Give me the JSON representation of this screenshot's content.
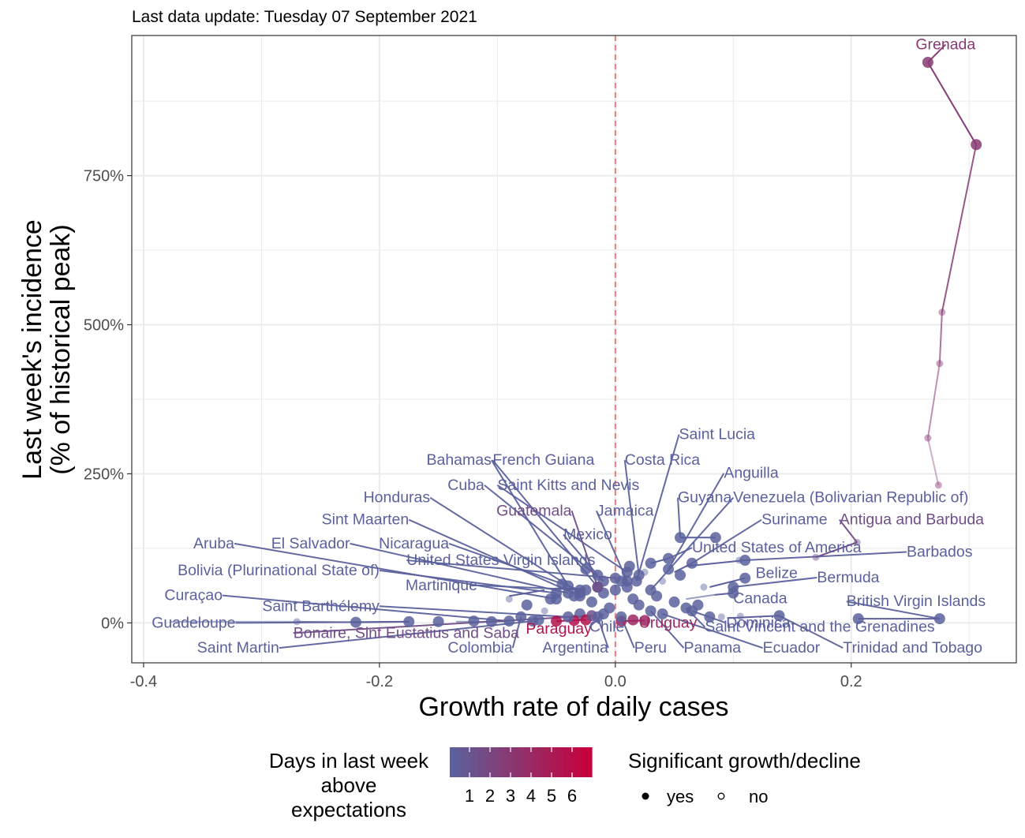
{
  "chart_data": {
    "type": "scatter",
    "subtitle": "Last data update: Tuesday 07 September 2021",
    "xlabel": "Growth rate of daily cases",
    "ylabel_lines": [
      "Last week's incidence",
      "(% of historical peak)"
    ],
    "xlim": [
      -0.41,
      0.34
    ],
    "ylim": [
      -67,
      985
    ],
    "x_ticks": [
      {
        "value": -0.4,
        "label": "-0.4"
      },
      {
        "value": -0.2,
        "label": "-0.2"
      },
      {
        "value": 0.0,
        "label": "0.0"
      },
      {
        "value": 0.2,
        "label": "0.2"
      }
    ],
    "y_ticks": [
      {
        "value": 0,
        "label": "0%"
      },
      {
        "value": 250,
        "label": "250%"
      },
      {
        "value": 500,
        "label": "500%"
      },
      {
        "value": 750,
        "label": "750%"
      }
    ],
    "grid": true,
    "reference_line_x": 0,
    "trajectories": [
      {
        "name": "Grenada",
        "days": 3,
        "points": [
          [
            0.274,
            231
          ],
          [
            0.265,
            310
          ],
          [
            0.275,
            435
          ],
          [
            0.277,
            521
          ],
          [
            0.306,
            802
          ],
          [
            0.265,
            940
          ]
        ]
      },
      {
        "name": "Antigua and Barbuda",
        "days": 2,
        "points": [
          [
            0.17,
            110
          ],
          [
            0.205,
            135
          ]
        ]
      },
      {
        "name": "British Virgin Islands",
        "days": 1,
        "points": [
          [
            0.206,
            7
          ],
          [
            0.275,
            7
          ]
        ]
      },
      {
        "name": "Trinidad and Tobago",
        "days": 1,
        "points": [
          [
            0.095,
            8
          ],
          [
            0.139,
            12
          ]
        ]
      },
      {
        "name": "Guyana",
        "days": 1,
        "points": [
          [
            0.055,
            143
          ],
          [
            0.085,
            143
          ]
        ]
      },
      {
        "name": "Suriname",
        "days": 1,
        "points": [
          [
            0.05,
            85
          ],
          [
            0.065,
            100
          ]
        ]
      },
      {
        "name": "Guadeloupe",
        "days": 1,
        "points": [
          [
            -0.378,
            2
          ],
          [
            -0.27,
            2
          ],
          [
            -0.22,
            1
          ],
          [
            -0.175,
            2
          ]
        ]
      },
      {
        "name": "Curaçao",
        "days": 1,
        "points": [
          [
            -0.135,
            2
          ],
          [
            -0.105,
            2
          ],
          [
            -0.09,
            3
          ]
        ]
      },
      {
        "name": "Bahamas",
        "days": 1,
        "points": [
          [
            -0.09,
            45
          ],
          [
            -0.06,
            55
          ]
        ]
      },
      {
        "name": "Canada",
        "days": 1,
        "points": [
          [
            0.06,
            40
          ],
          [
            0.084,
            47
          ],
          [
            0.1,
            50
          ]
        ]
      },
      {
        "name": "Belize",
        "days": 1,
        "points": [
          [
            0.08,
            60
          ],
          [
            0.11,
            75
          ]
        ]
      },
      {
        "name": "Barbados",
        "days": 1,
        "points": [
          [
            0.06,
            95
          ],
          [
            0.11,
            105
          ]
        ]
      },
      {
        "name": "United States of America",
        "days": 1,
        "points": [
          [
            0.03,
            100
          ],
          [
            0.045,
            108
          ]
        ]
      },
      {
        "name": "Uruguay",
        "days": 4,
        "points": [
          [
            0.005,
            3
          ],
          [
            0.025,
            4
          ]
        ]
      },
      {
        "name": "Paraguay",
        "days": 5,
        "points": [
          [
            -0.05,
            3
          ],
          [
            -0.025,
            5
          ]
        ]
      }
    ],
    "points": [
      {
        "name": "Grenada",
        "x": 0.265,
        "y": 940,
        "days": 3,
        "sig": true,
        "label": "Grenada",
        "lx": 0.28,
        "ly": 962,
        "anchor": "middle"
      },
      {
        "name": "Saint Lucia",
        "x": 0.018,
        "y": 70,
        "days": 1,
        "sig": true,
        "label": "Saint Lucia",
        "lx": 0.054,
        "ly": 308,
        "anchor": "start"
      },
      {
        "name": "Bahamas",
        "x": -0.04,
        "y": 62,
        "days": 1,
        "sig": true,
        "label": "Bahamas",
        "lx": -0.105,
        "ly": 265,
        "anchor": "end"
      },
      {
        "name": "French Guiana",
        "x": -0.015,
        "y": 60,
        "days": 1,
        "sig": true,
        "label": "French Guiana",
        "lx": -0.104,
        "ly": 265,
        "anchor": "start"
      },
      {
        "name": "Costa Rica",
        "x": 0.02,
        "y": 80,
        "days": 1,
        "sig": true,
        "label": "Costa Rica",
        "lx": 0.008,
        "ly": 265,
        "anchor": "start"
      },
      {
        "name": "Anguilla",
        "x": 0.045,
        "y": 90,
        "days": 1,
        "sig": true,
        "label": "Anguilla",
        "lx": 0.092,
        "ly": 243,
        "anchor": "start"
      },
      {
        "name": "Cuba",
        "x": -0.01,
        "y": 70,
        "days": 1,
        "sig": true,
        "label": "Cuba",
        "lx": -0.111,
        "ly": 223,
        "anchor": "end"
      },
      {
        "name": "Saint Kitts and Nevis",
        "x": 0.01,
        "y": 85,
        "days": 1,
        "sig": true,
        "label": "Saint Kitts and Nevis",
        "lx": -0.1,
        "ly": 223,
        "anchor": "start"
      },
      {
        "name": "Honduras",
        "x": -0.03,
        "y": 50,
        "days": 1,
        "sig": true,
        "label": "Honduras",
        "lx": -0.157,
        "ly": 202,
        "anchor": "end"
      },
      {
        "name": "Guyana",
        "x": 0.055,
        "y": 143,
        "days": 1,
        "sig": true,
        "label": "Guyana",
        "lx": 0.053,
        "ly": 202,
        "anchor": "start"
      },
      {
        "name": "Venezuela (Bolivarian Republic of)",
        "x": 0.03,
        "y": 55,
        "days": 1,
        "sig": true,
        "label": "Venezuela (Bolivarian Republic of)",
        "lx": 0.1,
        "ly": 202,
        "anchor": "start"
      },
      {
        "name": "Guatemala",
        "x": -0.015,
        "y": 60,
        "days": 2,
        "sig": true,
        "label": "Guatemala",
        "lx": -0.037,
        "ly": 180,
        "anchor": "end"
      },
      {
        "name": "Jamaica",
        "x": 0.01,
        "y": 70,
        "days": 1,
        "sig": true,
        "label": "Jamaica",
        "lx": -0.016,
        "ly": 180,
        "anchor": "start"
      },
      {
        "name": "Sint Maarten",
        "x": -0.03,
        "y": 45,
        "days": 1,
        "sig": true,
        "label": "Sint Maarten",
        "lx": -0.175,
        "ly": 165,
        "anchor": "end"
      },
      {
        "name": "Suriname",
        "x": 0.065,
        "y": 100,
        "days": 1,
        "sig": true,
        "label": "Suriname",
        "lx": 0.124,
        "ly": 165,
        "anchor": "start"
      },
      {
        "name": "Antigua and Barbuda",
        "x": 0.205,
        "y": 135,
        "days": 2,
        "sig": false,
        "label": "Antigua and Barbuda",
        "lx": 0.19,
        "ly": 165,
        "anchor": "start"
      },
      {
        "name": "Mexico",
        "x": -0.015,
        "y": 80,
        "days": 1,
        "sig": true,
        "label": "Mexico",
        "lx": -0.044,
        "ly": 140,
        "anchor": "start"
      },
      {
        "name": "Aruba",
        "x": -0.05,
        "y": 40,
        "days": 1,
        "sig": true,
        "label": "Aruba",
        "lx": -0.323,
        "ly": 125,
        "anchor": "end"
      },
      {
        "name": "El Salvador",
        "x": -0.04,
        "y": 50,
        "days": 1,
        "sig": true,
        "label": "El Salvador",
        "lx": -0.225,
        "ly": 125,
        "anchor": "end"
      },
      {
        "name": "Nicaragua",
        "x": -0.03,
        "y": 55,
        "days": 1,
        "sig": true,
        "label": "Nicaragua",
        "lx": -0.141,
        "ly": 125,
        "anchor": "end"
      },
      {
        "name": "United States of America",
        "x": 0.045,
        "y": 108,
        "days": 1,
        "sig": true,
        "label": "United States of America",
        "lx": 0.065,
        "ly": 118,
        "anchor": "start"
      },
      {
        "name": "Barbados",
        "x": 0.11,
        "y": 105,
        "days": 1,
        "sig": true,
        "label": "Barbados",
        "lx": 0.247,
        "ly": 111,
        "anchor": "start"
      },
      {
        "name": "United States Virgin Islands",
        "x": 0.0,
        "y": 75,
        "days": 1,
        "sig": true,
        "label": "United States Virgin Islands",
        "lx": -0.177,
        "ly": 97,
        "anchor": "start"
      },
      {
        "name": "Bolivia (Plurinational State of)",
        "x": -0.05,
        "y": 50,
        "days": 1,
        "sig": true,
        "label": "Bolivia (Plurinational State of)",
        "lx": -0.2,
        "ly": 80,
        "anchor": "end"
      },
      {
        "name": "Belize",
        "x": 0.11,
        "y": 75,
        "days": 1,
        "sig": true,
        "label": "Belize",
        "lx": 0.119,
        "ly": 75,
        "anchor": "start"
      },
      {
        "name": "Bermuda",
        "x": 0.1,
        "y": 60,
        "days": 1,
        "sig": true,
        "label": "Bermuda",
        "lx": 0.171,
        "ly": 68,
        "anchor": "start"
      },
      {
        "name": "Martinique",
        "x": -0.025,
        "y": 55,
        "days": 1,
        "sig": true,
        "label": "Martinique",
        "lx": -0.117,
        "ly": 55,
        "anchor": "end"
      },
      {
        "name": "Curaçao",
        "x": -0.09,
        "y": 3,
        "days": 1,
        "sig": true,
        "label": "Curaçao",
        "lx": -0.333,
        "ly": 38,
        "anchor": "end"
      },
      {
        "name": "Canada",
        "x": 0.1,
        "y": 50,
        "days": 1,
        "sig": true,
        "label": "Canada",
        "lx": 0.1,
        "ly": 33,
        "anchor": "start"
      },
      {
        "name": "British Virgin Islands",
        "x": 0.275,
        "y": 7,
        "days": 1,
        "sig": true,
        "label": "British Virgin Islands",
        "lx": 0.196,
        "ly": 28,
        "anchor": "start"
      },
      {
        "name": "Saint Barthélemy",
        "x": -0.04,
        "y": 10,
        "days": 1,
        "sig": true,
        "label": "Saint Barthélemy",
        "lx": -0.2,
        "ly": 20,
        "anchor": "end"
      },
      {
        "name": "Guadeloupe",
        "x": -0.175,
        "y": 2,
        "days": 1,
        "sig": true,
        "label": "Guadeloupe",
        "lx": -0.322,
        "ly": -8,
        "anchor": "end"
      },
      {
        "name": "Paraguay",
        "x": -0.025,
        "y": 5,
        "days": 5,
        "sig": true,
        "label": "Paraguay",
        "lx": -0.02,
        "ly": -18,
        "anchor": "end"
      },
      {
        "name": "Bonaire, Sint Eustatius and Saba",
        "x": -0.02,
        "y": 12,
        "days": 2,
        "sig": true,
        "label": "Bonaire, Sint Eustatius and Saba",
        "lx": -0.273,
        "ly": -25,
        "anchor": "start"
      },
      {
        "name": "Chile",
        "x": -0.01,
        "y": 15,
        "days": 1,
        "sig": true,
        "label": "Chile",
        "lx": -0.022,
        "ly": -15,
        "anchor": "start"
      },
      {
        "name": "Uruguay",
        "x": 0.025,
        "y": 4,
        "days": 4,
        "sig": true,
        "label": "Uruguay",
        "lx": 0.02,
        "ly": -8,
        "anchor": "start"
      },
      {
        "name": "Dominica",
        "x": 0.065,
        "y": 20,
        "days": 1,
        "sig": true,
        "label": "Dominica",
        "lx": 0.094,
        "ly": -8,
        "anchor": "start"
      },
      {
        "name": "Saint Vincent and the Grenadines",
        "x": 0.06,
        "y": 25,
        "days": 1,
        "sig": true,
        "label": "Saint Vincent and the Grenadines",
        "lx": 0.076,
        "ly": -15,
        "anchor": "start"
      },
      {
        "name": "Saint Martin",
        "x": -0.07,
        "y": 3,
        "days": 1,
        "sig": true,
        "label": "Saint Martin",
        "lx": -0.285,
        "ly": -50,
        "anchor": "end"
      },
      {
        "name": "Colombia",
        "x": -0.08,
        "y": 10,
        "days": 1,
        "sig": true,
        "label": "Colombia",
        "lx": -0.087,
        "ly": -50,
        "anchor": "end"
      },
      {
        "name": "Argentina",
        "x": -0.015,
        "y": 10,
        "days": 1,
        "sig": true,
        "label": "Argentina",
        "lx": -0.006,
        "ly": -50,
        "anchor": "end"
      },
      {
        "name": "Peru",
        "x": 0.005,
        "y": 10,
        "days": 1,
        "sig": true,
        "label": "Peru",
        "lx": 0.016,
        "ly": -50,
        "anchor": "start"
      },
      {
        "name": "Panama",
        "x": 0.03,
        "y": 20,
        "days": 1,
        "sig": true,
        "label": "Panama",
        "lx": 0.058,
        "ly": -50,
        "anchor": "start"
      },
      {
        "name": "Ecuador",
        "x": 0.04,
        "y": 15,
        "days": 1,
        "sig": true,
        "label": "Ecuador",
        "lx": 0.125,
        "ly": -50,
        "anchor": "start"
      },
      {
        "name": "Trinidad and Tobago",
        "x": 0.139,
        "y": 12,
        "days": 1,
        "sig": true,
        "label": "Trinidad and Tobago",
        "lx": 0.193,
        "ly": -50,
        "anchor": "start"
      }
    ],
    "extra_points": [
      {
        "x": -0.27,
        "y": 2,
        "days": 1,
        "sig": false
      },
      {
        "x": -0.22,
        "y": 1,
        "days": 1,
        "sig": true
      },
      {
        "x": -0.15,
        "y": 2,
        "days": 1,
        "sig": true
      },
      {
        "x": -0.12,
        "y": 3,
        "days": 1,
        "sig": true
      },
      {
        "x": -0.105,
        "y": 2,
        "days": 1,
        "sig": true
      },
      {
        "x": -0.09,
        "y": 40,
        "days": 1,
        "sig": false
      },
      {
        "x": -0.075,
        "y": 30,
        "days": 1,
        "sig": true
      },
      {
        "x": -0.065,
        "y": 5,
        "days": 1,
        "sig": true
      },
      {
        "x": -0.06,
        "y": 20,
        "days": 1,
        "sig": false
      },
      {
        "x": -0.055,
        "y": 40,
        "days": 1,
        "sig": true
      },
      {
        "x": -0.045,
        "y": 65,
        "days": 1,
        "sig": true
      },
      {
        "x": -0.035,
        "y": 45,
        "days": 1,
        "sig": true
      },
      {
        "x": -0.03,
        "y": 15,
        "days": 1,
        "sig": true
      },
      {
        "x": -0.025,
        "y": 90,
        "days": 1,
        "sig": true
      },
      {
        "x": -0.02,
        "y": 35,
        "days": 1,
        "sig": true
      },
      {
        "x": -0.01,
        "y": 50,
        "days": 1,
        "sig": true
      },
      {
        "x": -0.005,
        "y": 25,
        "days": 1,
        "sig": true
      },
      {
        "x": 0.0,
        "y": 55,
        "days": 1,
        "sig": true
      },
      {
        "x": 0.005,
        "y": 70,
        "days": 1,
        "sig": true
      },
      {
        "x": 0.01,
        "y": 60,
        "days": 1,
        "sig": true
      },
      {
        "x": 0.012,
        "y": 95,
        "days": 1,
        "sig": true
      },
      {
        "x": 0.015,
        "y": 40,
        "days": 1,
        "sig": true
      },
      {
        "x": 0.02,
        "y": 30,
        "days": 1,
        "sig": true
      },
      {
        "x": 0.025,
        "y": 85,
        "days": 1,
        "sig": false
      },
      {
        "x": 0.03,
        "y": 100,
        "days": 1,
        "sig": true
      },
      {
        "x": 0.035,
        "y": 45,
        "days": 1,
        "sig": true
      },
      {
        "x": 0.04,
        "y": 70,
        "days": 1,
        "sig": false
      },
      {
        "x": 0.05,
        "y": 35,
        "days": 1,
        "sig": true
      },
      {
        "x": 0.055,
        "y": 80,
        "days": 1,
        "sig": true
      },
      {
        "x": 0.07,
        "y": 30,
        "days": 1,
        "sig": true
      },
      {
        "x": 0.075,
        "y": 60,
        "days": 1,
        "sig": false
      },
      {
        "x": 0.08,
        "y": 10,
        "days": 1,
        "sig": true
      },
      {
        "x": 0.085,
        "y": 143,
        "days": 1,
        "sig": true
      },
      {
        "x": 0.09,
        "y": 10,
        "days": 1,
        "sig": false
      },
      {
        "x": 0.105,
        "y": 105,
        "days": 1,
        "sig": false
      },
      {
        "x": 0.106,
        "y": 11,
        "days": 1,
        "sig": false
      },
      {
        "x": 0.17,
        "y": 110,
        "days": 2,
        "sig": false
      },
      {
        "x": 0.274,
        "y": 231,
        "days": 3,
        "sig": false
      },
      {
        "x": 0.265,
        "y": 310,
        "days": 3,
        "sig": false
      },
      {
        "x": 0.275,
        "y": 435,
        "days": 3,
        "sig": false
      },
      {
        "x": 0.277,
        "y": 521,
        "days": 3,
        "sig": false
      },
      {
        "x": 0.306,
        "y": 802,
        "days": 3,
        "sig": true
      },
      {
        "x": 0.206,
        "y": 7,
        "days": 1,
        "sig": true
      },
      {
        "x": -0.05,
        "y": 3,
        "days": 5,
        "sig": true
      },
      {
        "x": -0.035,
        "y": 4,
        "days": 5,
        "sig": true
      },
      {
        "x": 0.005,
        "y": 3,
        "days": 4,
        "sig": true
      },
      {
        "x": 0.015,
        "y": 5,
        "days": 4,
        "sig": true
      }
    ],
    "colors": {
      "low": "#5b619c",
      "high": "#c8003a",
      "zero_line": "#f07a7a",
      "grid": "#ebebeb",
      "panel_border": "#333333"
    },
    "legend": {
      "color_title_lines": [
        "Days in last week",
        "above",
        "expectations"
      ],
      "color_ticks": [
        "1",
        "2",
        "3",
        "4",
        "5",
        "6"
      ],
      "shape_title": "Significant growth/decline",
      "shape_yes": "yes",
      "shape_no": "no",
      "placement": "bottom"
    }
  }
}
